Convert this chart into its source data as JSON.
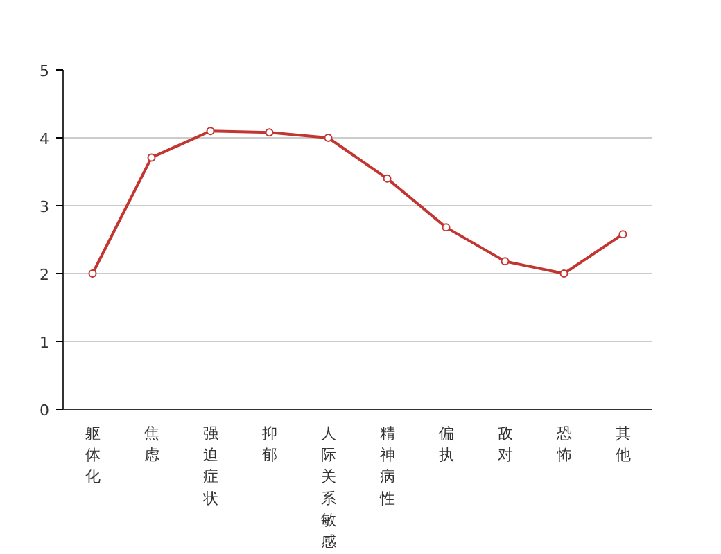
{
  "chart_data": {
    "type": "line",
    "categories": [
      "躯体化",
      "焦虑",
      "强迫症状",
      "抑郁",
      "人际关系敏感",
      "精神病性",
      "偏执",
      "敌对",
      "恐怖",
      "其他"
    ],
    "series": [
      {
        "color": "#c23531",
        "values": [
          2.0,
          3.71,
          4.1,
          4.08,
          4.0,
          3.4,
          2.68,
          2.18,
          2.0,
          2.58
        ]
      }
    ],
    "ylim": [
      0,
      5
    ],
    "yticks": [
      0,
      1,
      2,
      3,
      4,
      5
    ],
    "grid": "y",
    "marker": "circle",
    "line_style": "solid"
  }
}
